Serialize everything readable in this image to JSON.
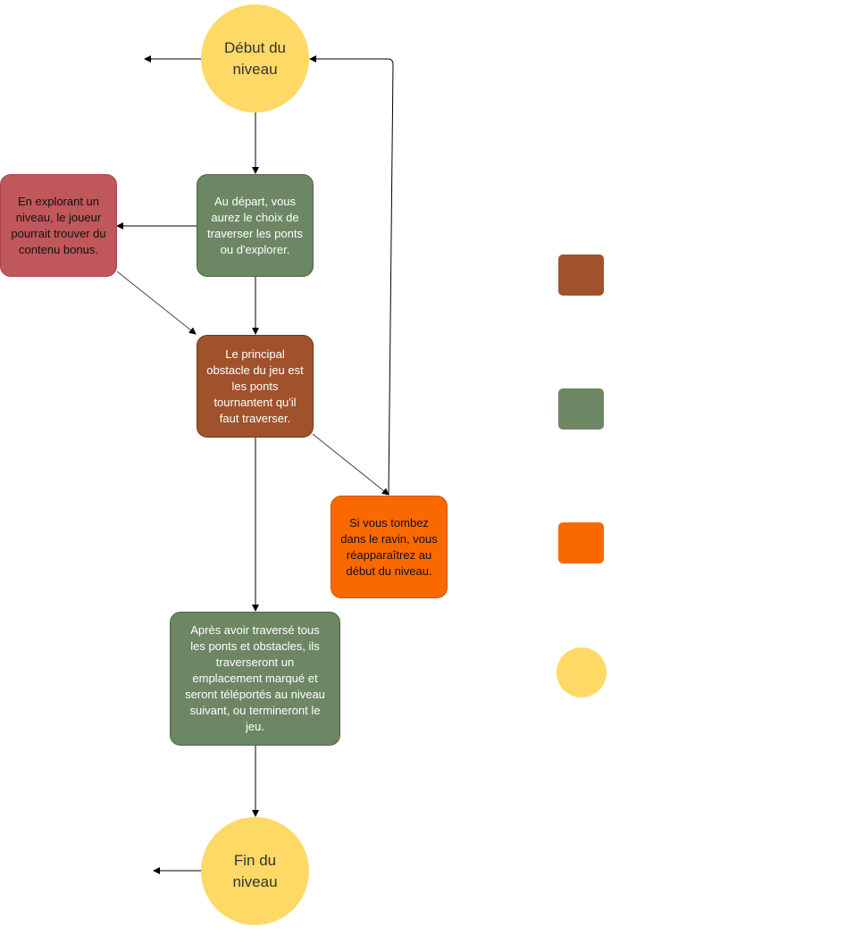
{
  "colors": {
    "yellow": "#FFD966",
    "green": "#6D8764",
    "red": "#C0575A",
    "brown": "#A0522D",
    "orange": "#FA6800",
    "edge": "#000000"
  },
  "nodes": {
    "start": "Début du\nniveau",
    "explore": "Au départ, vous\naurez le choix de\ntraverser les ponts\nou d'explorer.",
    "bonus": "En explorant un\nniveau, le joueur\npourrait trouver du\ncontenu bonus.",
    "obstacle": "Le principal\nobstacle du jeu est\nles ponts\ntournantent qu'il\nfaut traverser.",
    "fall": "Si vous tombez\ndans le ravin, vous\nréapparaîtrez au\ndébut du niveau.",
    "after": "Après avoir traversé tous\nles ponts et obstacles, ils\ntraverseront un\nemplacement marqué et\nseront téléportés au niveau\nsuivant, ou termineront le\njeu.",
    "end": "Fin du\nniveau"
  },
  "legend": [
    "brown",
    "green",
    "orange",
    "yellow-circle"
  ]
}
